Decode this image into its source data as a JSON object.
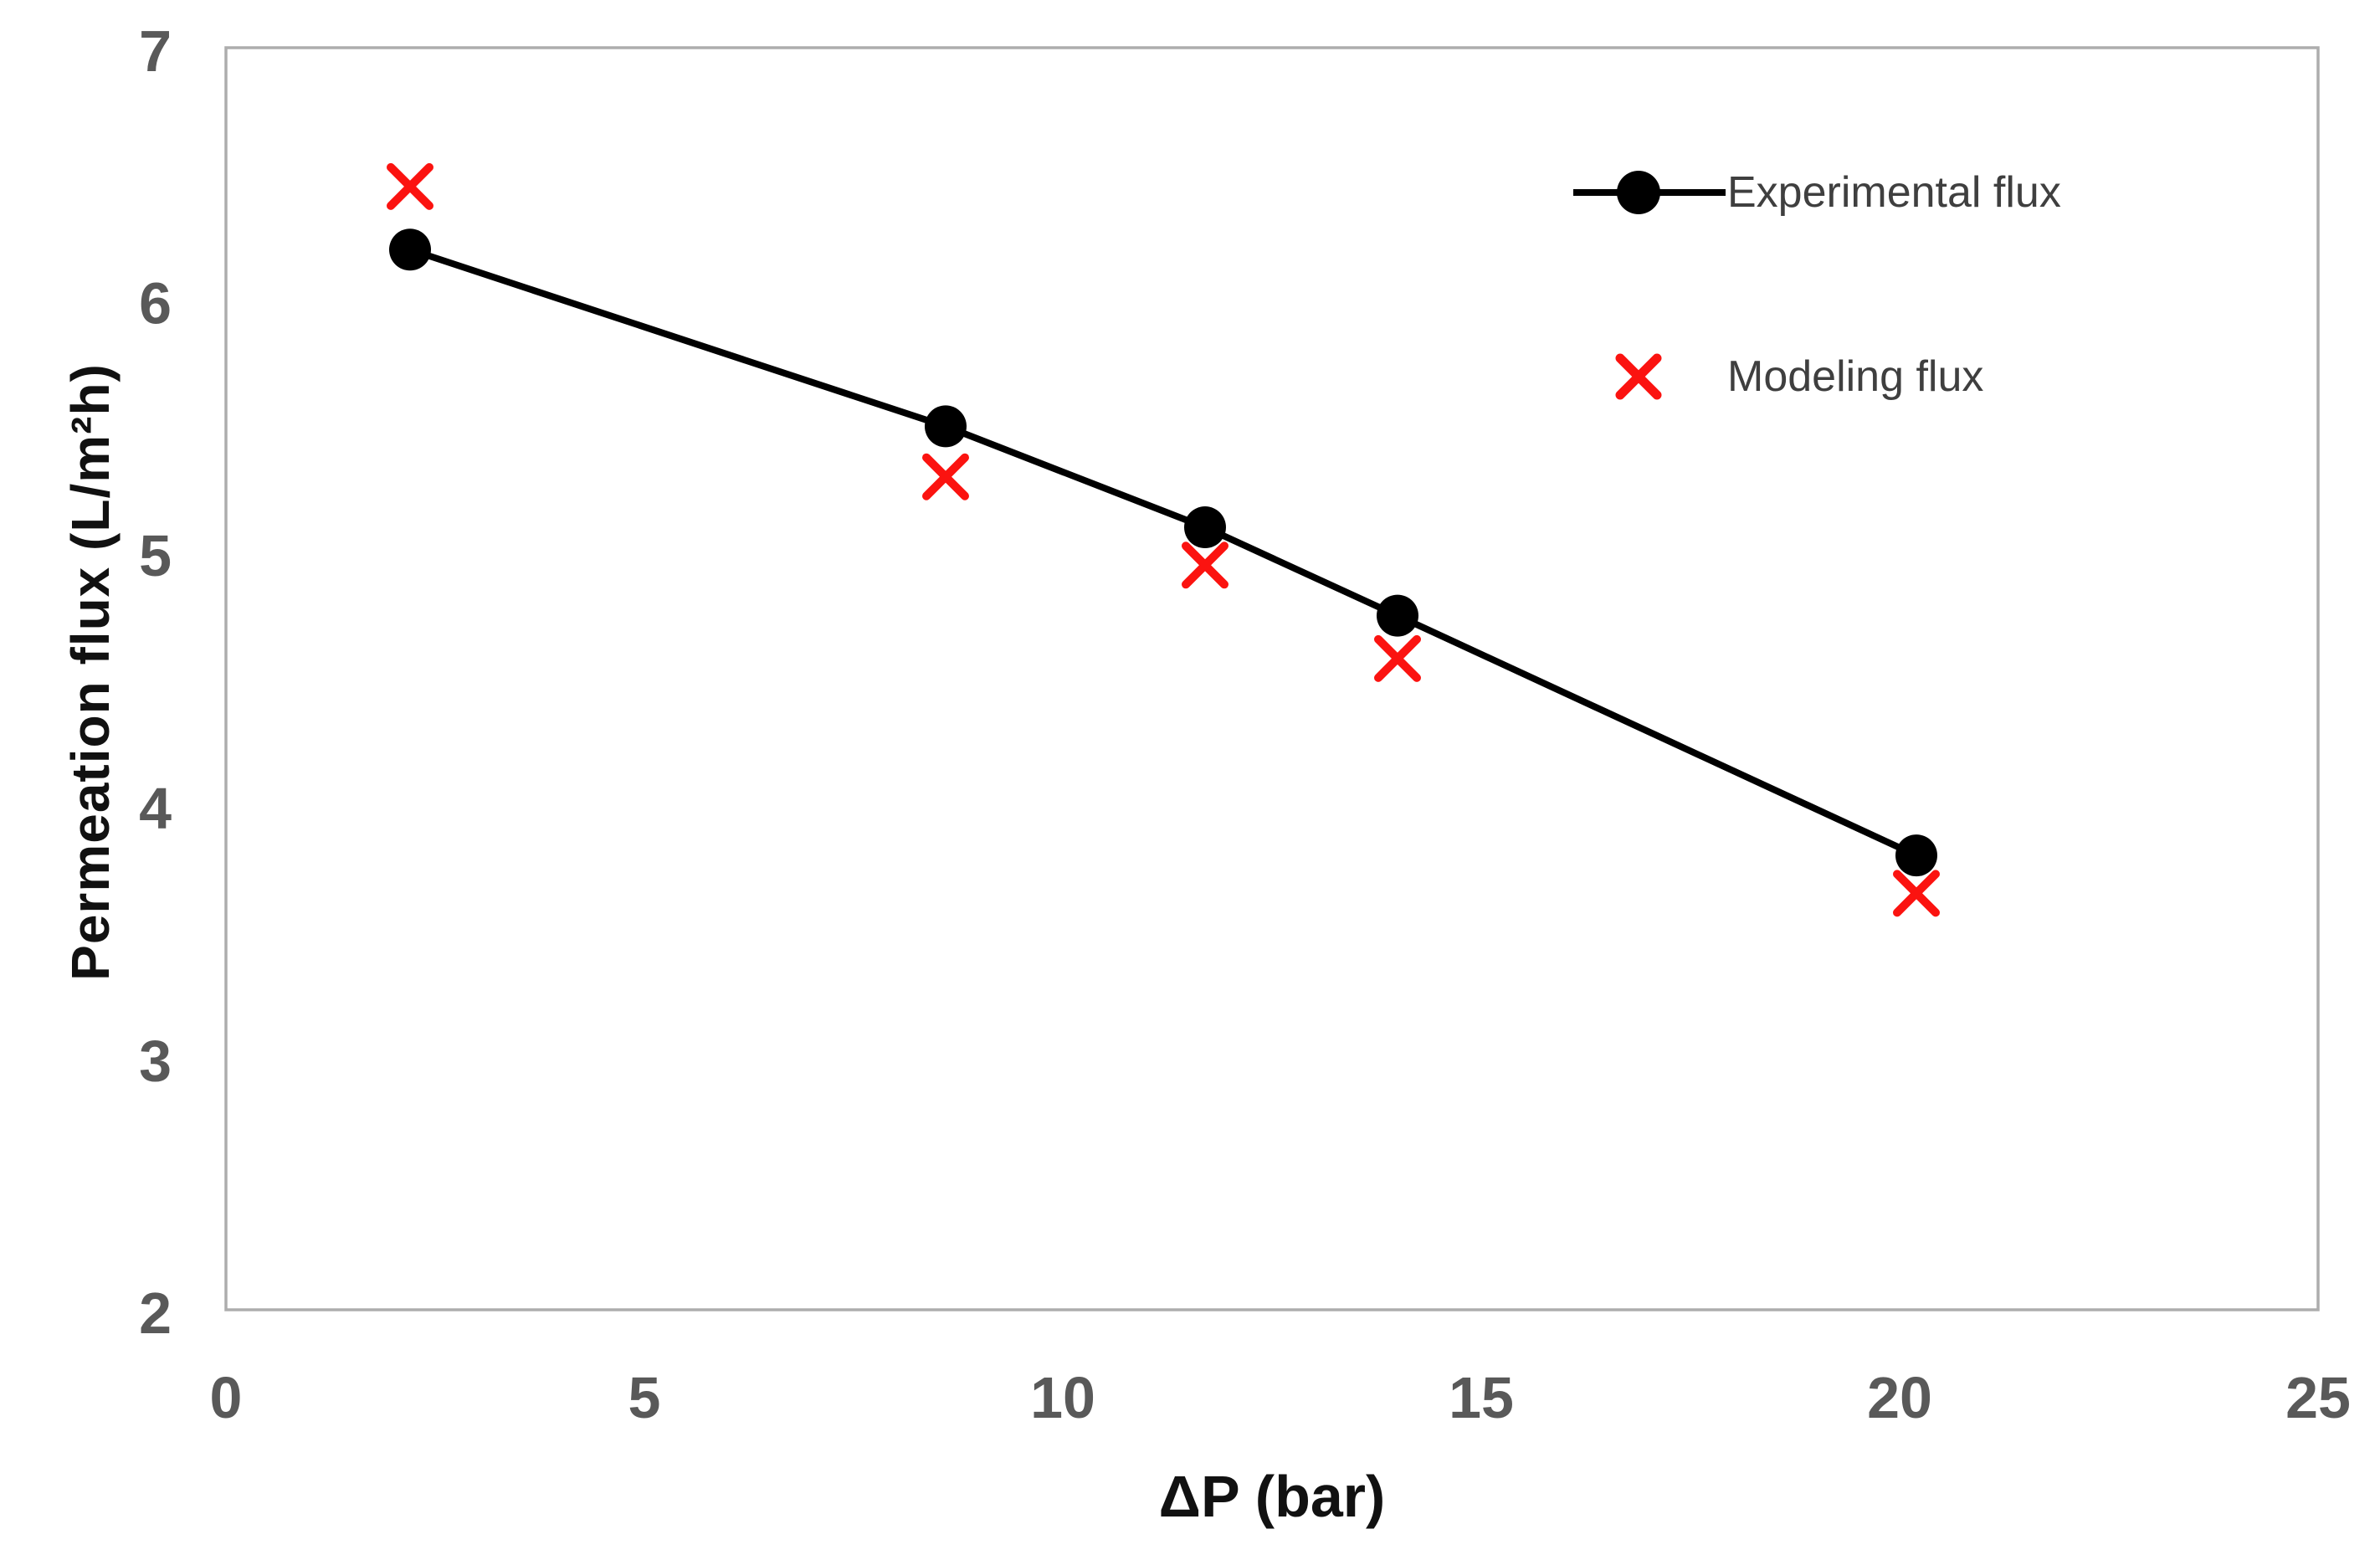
{
  "figure": {
    "background": "#ffffff"
  },
  "chart_data": {
    "type": "line",
    "title": "",
    "xlabel": "ΔP (bar)",
    "ylabel": "Permeation flux (L/m²h)",
    "xlim": [
      0,
      25
    ],
    "ylim": [
      2,
      7
    ],
    "x_ticks": [
      "0",
      "5",
      "10",
      "15",
      "20",
      "25"
    ],
    "y_ticks": [
      "2",
      "3",
      "4",
      "5",
      "6",
      "7"
    ],
    "grid": false,
    "legend_position": "top-right",
    "x": [
      2.2,
      8.6,
      11.7,
      14,
      20.2
    ],
    "series": [
      {
        "name": "Experimental flux",
        "values": [
          6.2,
          5.5,
          5.1,
          4.75,
          3.8
        ],
        "color": "#000000",
        "marker": "circle",
        "line": true
      },
      {
        "name": "Modeling flux",
        "values": [
          6.45,
          5.3,
          4.95,
          4.58,
          3.65
        ],
        "color": "#fb1310",
        "marker": "x",
        "line": false
      }
    ]
  },
  "styles": {
    "plot_border_color": "#adadad",
    "tick_label_color": "#595959",
    "axis_title_color": "#111111",
    "legend_text_color": "#3f3f3f"
  }
}
